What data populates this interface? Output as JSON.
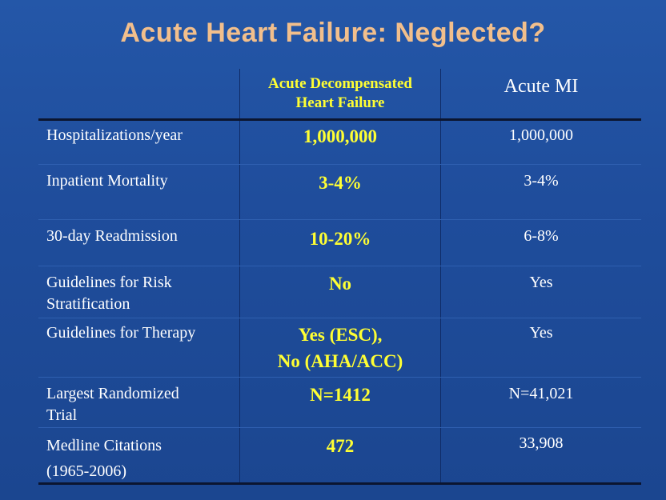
{
  "title": "Acute Heart Failure: Neglected?",
  "header": {
    "adhf_line1": "Acute Decompensated",
    "adhf_line2": "Heart Failure",
    "mi": "Acute MI"
  },
  "rows": [
    {
      "label_line1": "Hospitalizations/year",
      "label_line2": "",
      "adhf_line1": "1,000,000",
      "adhf_line2": "",
      "mi": "1,000,000"
    },
    {
      "label_line1": "Inpatient Mortality",
      "label_line2": "",
      "adhf_line1": "3-4%",
      "adhf_line2": "",
      "mi": "3-4%"
    },
    {
      "label_line1": "30-day Readmission",
      "label_line2": "",
      "adhf_line1": "10-20%",
      "adhf_line2": "",
      "mi": "6-8%"
    },
    {
      "label_line1": "Guidelines for Risk",
      "label_line2": "Stratification",
      "adhf_line1": "No",
      "adhf_line2": "",
      "mi": "Yes"
    },
    {
      "label_line1": "Guidelines for Therapy",
      "label_line2": "",
      "adhf_line1": "Yes (ESC),",
      "adhf_line2": "No (AHA/ACC)",
      "mi": "Yes"
    },
    {
      "label_line1": "Largest Randomized",
      "label_line2": "Trial",
      "adhf_line1": "N=1412",
      "adhf_line2": "",
      "mi": "N=41,021"
    },
    {
      "label_line1": "Medline Citations",
      "label_line2": "(1965-2006)",
      "adhf_line1": "472",
      "adhf_line2": "",
      "mi": "33,908"
    }
  ],
  "colors": {
    "background": "#1f4e9e",
    "title": "#f2bf8c",
    "highlight": "#ffff33",
    "text": "#ffffff"
  }
}
